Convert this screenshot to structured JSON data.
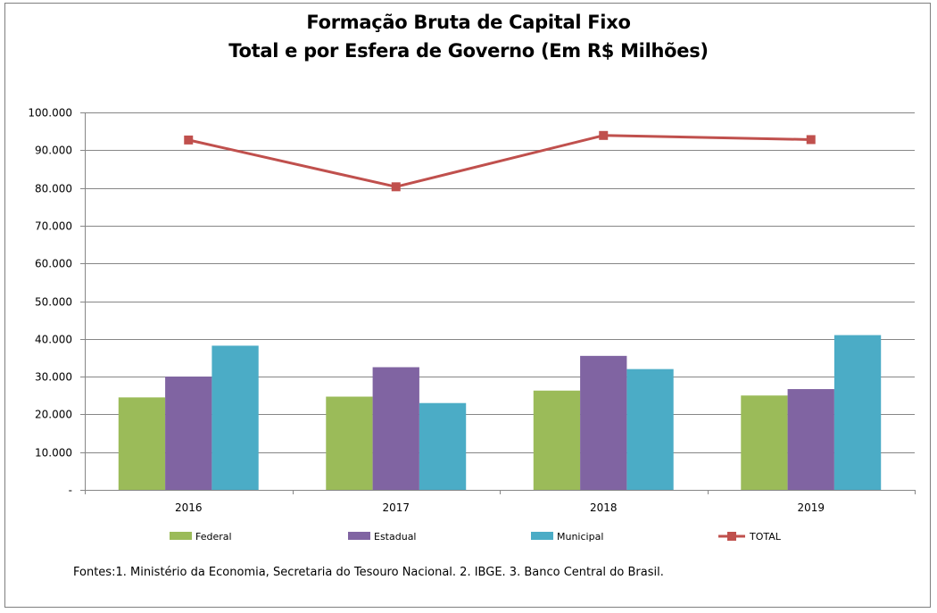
{
  "chart_data": {
    "type": "bar",
    "title": "Formação Bruta de Capital Fixo",
    "subtitle": "Total e por Esfera de Governo (Em R$ Milhões)",
    "categories": [
      "2016",
      "2017",
      "2018",
      "2019"
    ],
    "series": [
      {
        "name": "Federal",
        "type": "bar",
        "color": "#9bbb59",
        "values": [
          24500,
          24700,
          26300,
          25000
        ]
      },
      {
        "name": "Estadual",
        "type": "bar",
        "color": "#8064a2",
        "values": [
          30000,
          32500,
          35500,
          26700
        ]
      },
      {
        "name": "Municipal",
        "type": "bar",
        "color": "#4bacc6",
        "values": [
          38200,
          23000,
          32000,
          41000
        ]
      },
      {
        "name": "TOTAL",
        "type": "line",
        "color": "#c0504d",
        "values": [
          92700,
          80300,
          93900,
          92800
        ]
      }
    ],
    "ylim": [
      0,
      100000
    ],
    "yticks": [
      0,
      10000,
      20000,
      30000,
      40000,
      50000,
      60000,
      70000,
      80000,
      90000,
      100000
    ],
    "ytick_labels": [
      "-",
      "10.000",
      "20.000",
      "30.000",
      "40.000",
      "50.000",
      "60.000",
      "70.000",
      "80.000",
      "90.000",
      "100.000"
    ],
    "xlabel": "",
    "ylabel": "",
    "grid": true,
    "legend_position": "bottom"
  },
  "source_note": "Fontes:1. Ministério da Economia, Secretaria do Tesouro Nacional. 2. IBGE. 3. Banco Central do Brasil."
}
